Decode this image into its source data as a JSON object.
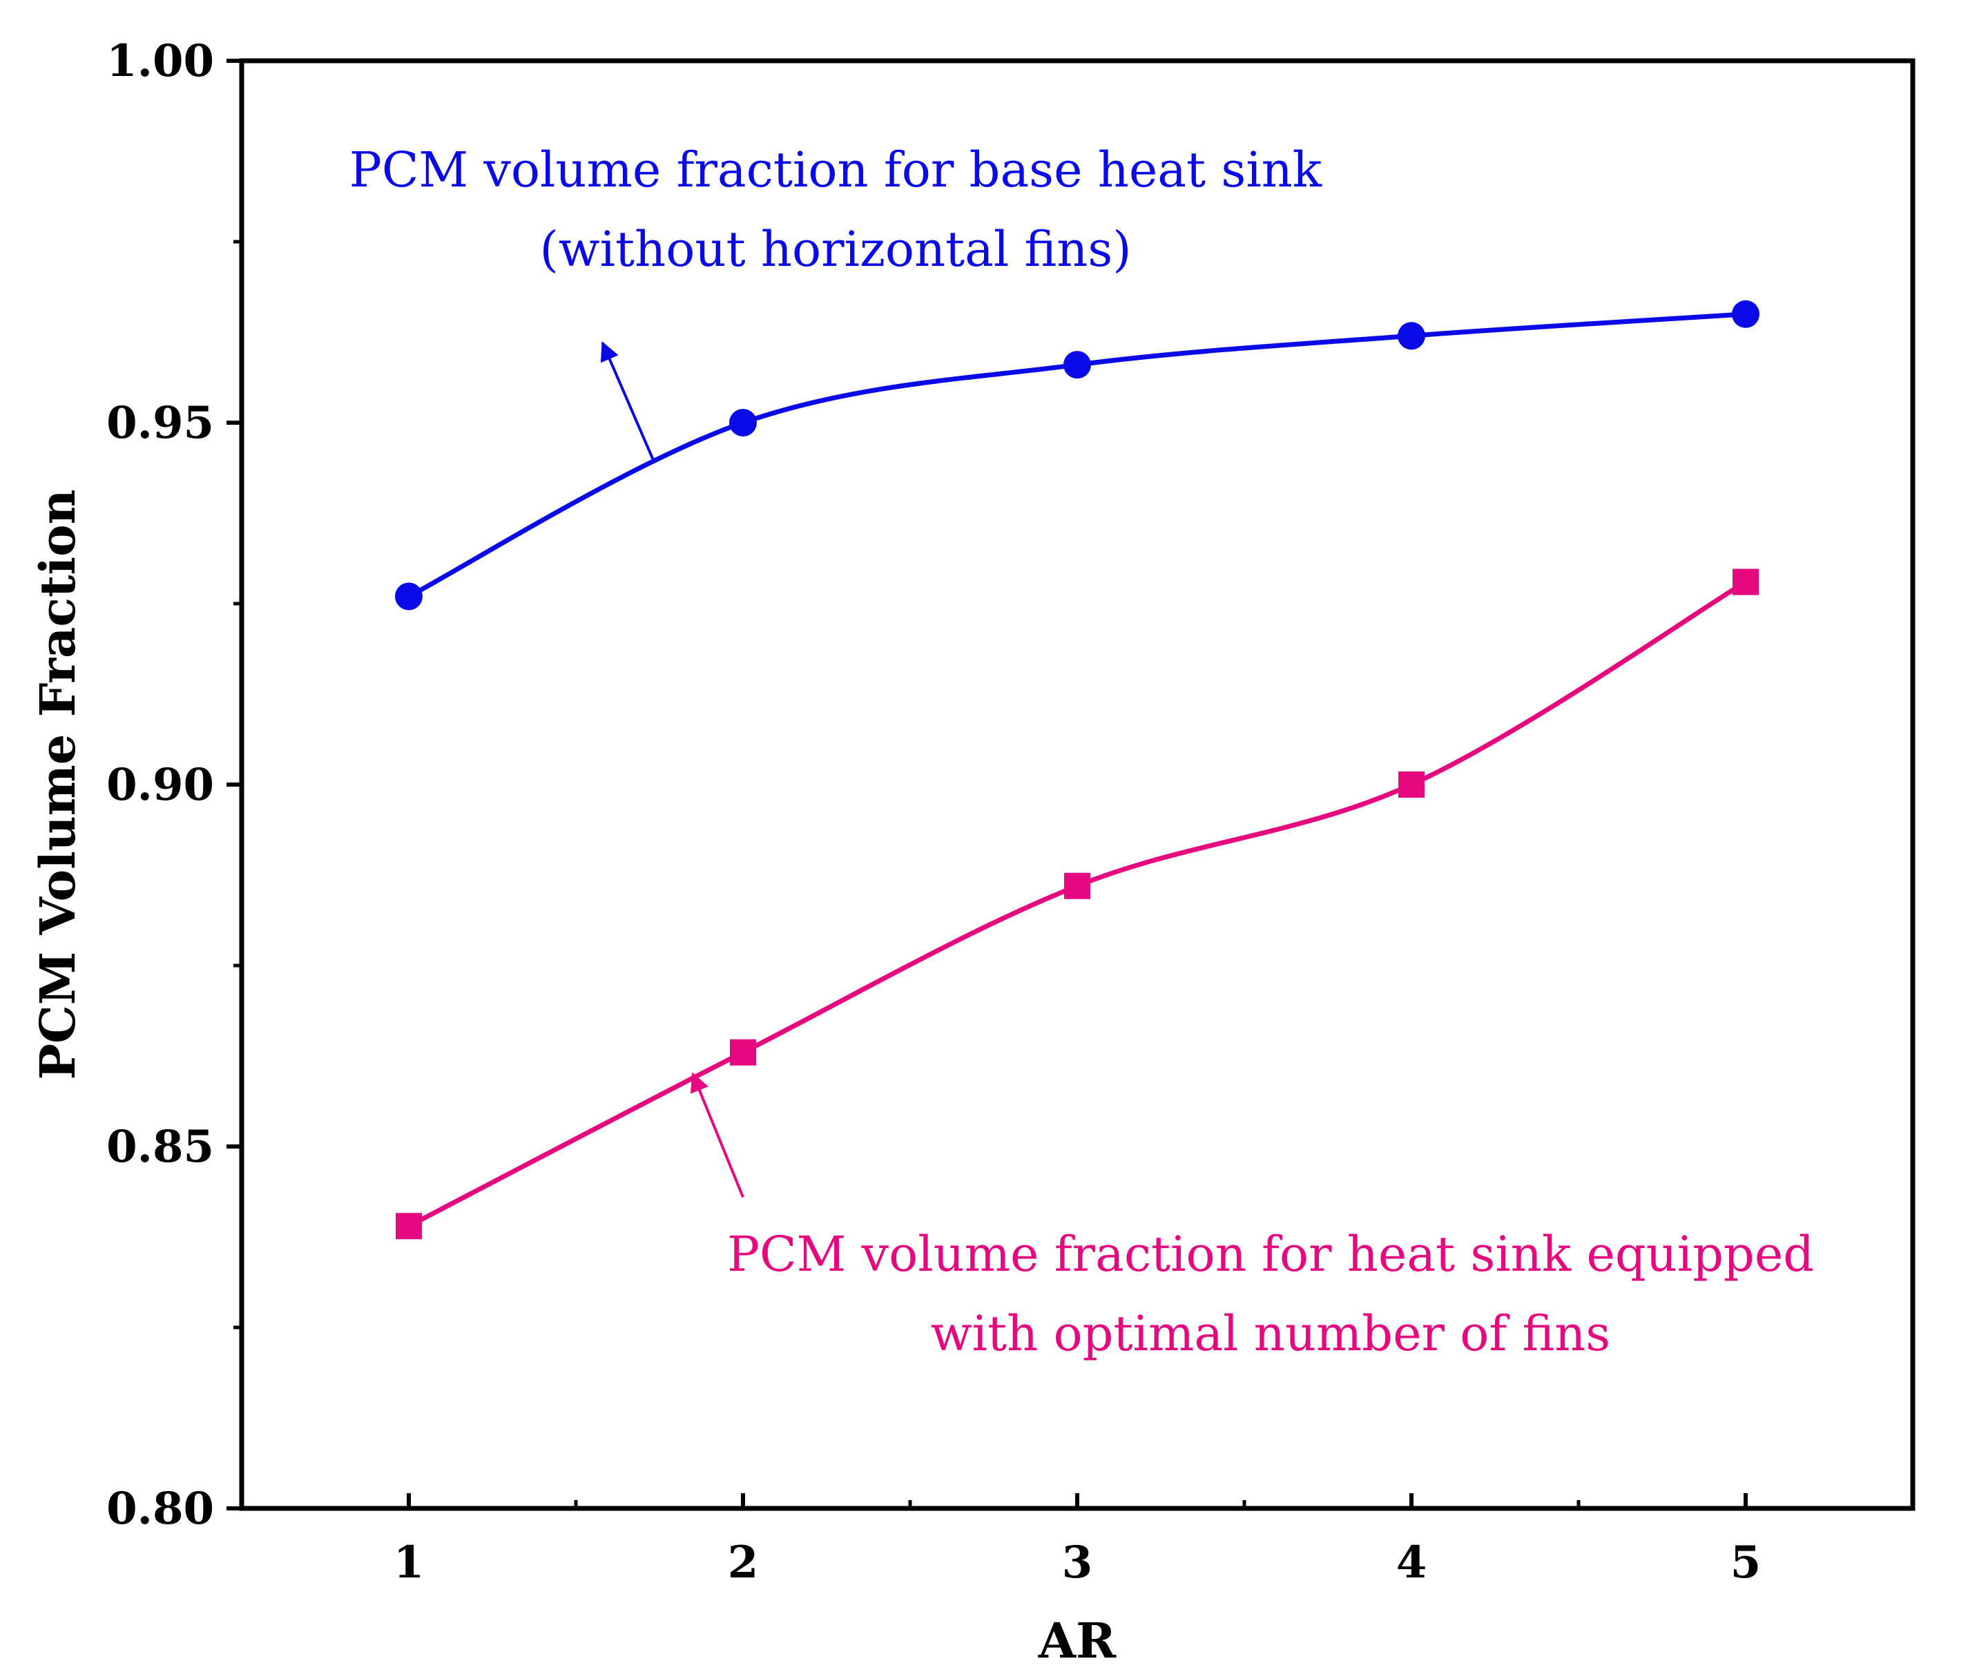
{
  "chart_data": {
    "type": "line",
    "title": "",
    "xlabel": "AR",
    "ylabel": "PCM Volume Fraction",
    "xlim": [
      0.5,
      5.5
    ],
    "ylim": [
      0.8,
      1.0
    ],
    "x": [
      1,
      2,
      3,
      4,
      5
    ],
    "xticks": [
      "1",
      "2",
      "3",
      "4",
      "5"
    ],
    "yticks": [
      "0.80",
      "0.85",
      "0.90",
      "0.95",
      "1.00"
    ],
    "series": [
      {
        "name": "PCM volume fraction for base heat sink (without horizontal fins)",
        "color": "#0a0ae6",
        "marker": "circle",
        "values": [
          0.926,
          0.95,
          0.958,
          0.962,
          0.965
        ]
      },
      {
        "name": "PCM volume fraction for heat sink equipped with optimal number of fins",
        "color": "#e6087f",
        "marker": "square",
        "values": [
          0.839,
          0.863,
          0.886,
          0.9,
          0.928
        ]
      }
    ],
    "annotations": [
      {
        "lines": [
          "PCM volume fraction for base heat sink",
          "(without horizontal fins)"
        ],
        "color": "#0a0ae6",
        "arrow_from": [
          1.73,
          0.945
        ],
        "arrow_to": [
          1.58,
          0.961
        ]
      },
      {
        "lines": [
          "PCM volume fraction for heat sink equipped",
          "with optimal number of fins"
        ],
        "color": "#e6087f",
        "arrow_from": [
          2.0,
          0.843
        ],
        "arrow_to": [
          1.85,
          0.86
        ]
      }
    ],
    "grid": false,
    "legend": "none"
  }
}
